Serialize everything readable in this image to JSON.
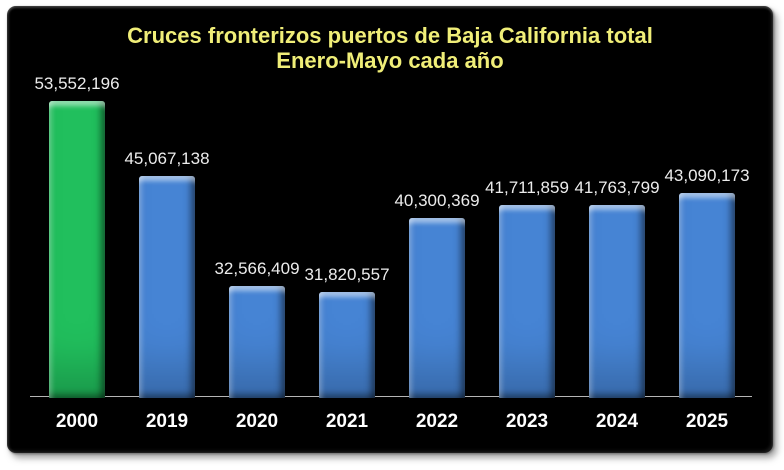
{
  "page": {
    "background_color": "#ffffff"
  },
  "chart": {
    "title_line1": "Cruces fronterizos puertos de Baja California total",
    "title_line2": "Enero-Mayo cada año",
    "title_color": "#f0ee78",
    "plot_background_color": "#000000",
    "axis_line_color": "#b5b5b5",
    "value_label_color": "#ececec",
    "year_label_color": "#ffffff",
    "highlight_bar_color": "#21bf5d",
    "default_bar_color": "#4684d4"
  },
  "chart_data": {
    "type": "bar",
    "title": "Cruces fronterizos puertos de Baja California total Enero-Mayo cada año",
    "xlabel": "",
    "ylabel": "",
    "categories": [
      "2000",
      "2019",
      "2020",
      "2021",
      "2022",
      "2023",
      "2024",
      "2025"
    ],
    "values": [
      53552196,
      45067138,
      32566409,
      31820557,
      40300369,
      41711859,
      41763799,
      43090173
    ],
    "value_labels": [
      "53,552,196",
      "45,067,138",
      "32,566,409",
      "31,820,557",
      "40,300,369",
      "41,711,859",
      "41,763,799",
      "43,090,173"
    ],
    "bar_colors": [
      "#21bf5d",
      "#4684d4",
      "#4684d4",
      "#4684d4",
      "#4684d4",
      "#4684d4",
      "#4684d4",
      "#4684d4"
    ],
    "ylim": [
      20000000,
      55000000
    ],
    "grid": false,
    "legend_position": "none",
    "data_labels_shown": true
  }
}
